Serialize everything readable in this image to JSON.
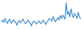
{
  "chart_data": {
    "type": "line",
    "color": "#3a8dd0",
    "tick_labels": false,
    "ylim": [
      20,
      100
    ],
    "values": [
      40,
      45,
      38,
      50,
      42,
      35,
      44,
      48,
      36,
      40,
      46,
      42,
      38,
      30,
      41,
      44,
      37,
      43,
      48,
      40,
      35,
      39,
      45,
      41,
      36,
      28,
      38,
      42,
      40,
      33,
      37,
      43,
      39,
      35,
      41,
      45,
      38,
      32,
      40,
      44,
      50,
      47,
      42,
      55,
      48,
      40,
      46,
      52,
      45,
      58,
      50,
      60,
      54,
      48,
      95,
      62,
      70,
      55,
      78,
      60,
      52,
      65,
      58,
      50,
      68,
      55,
      48
    ]
  }
}
